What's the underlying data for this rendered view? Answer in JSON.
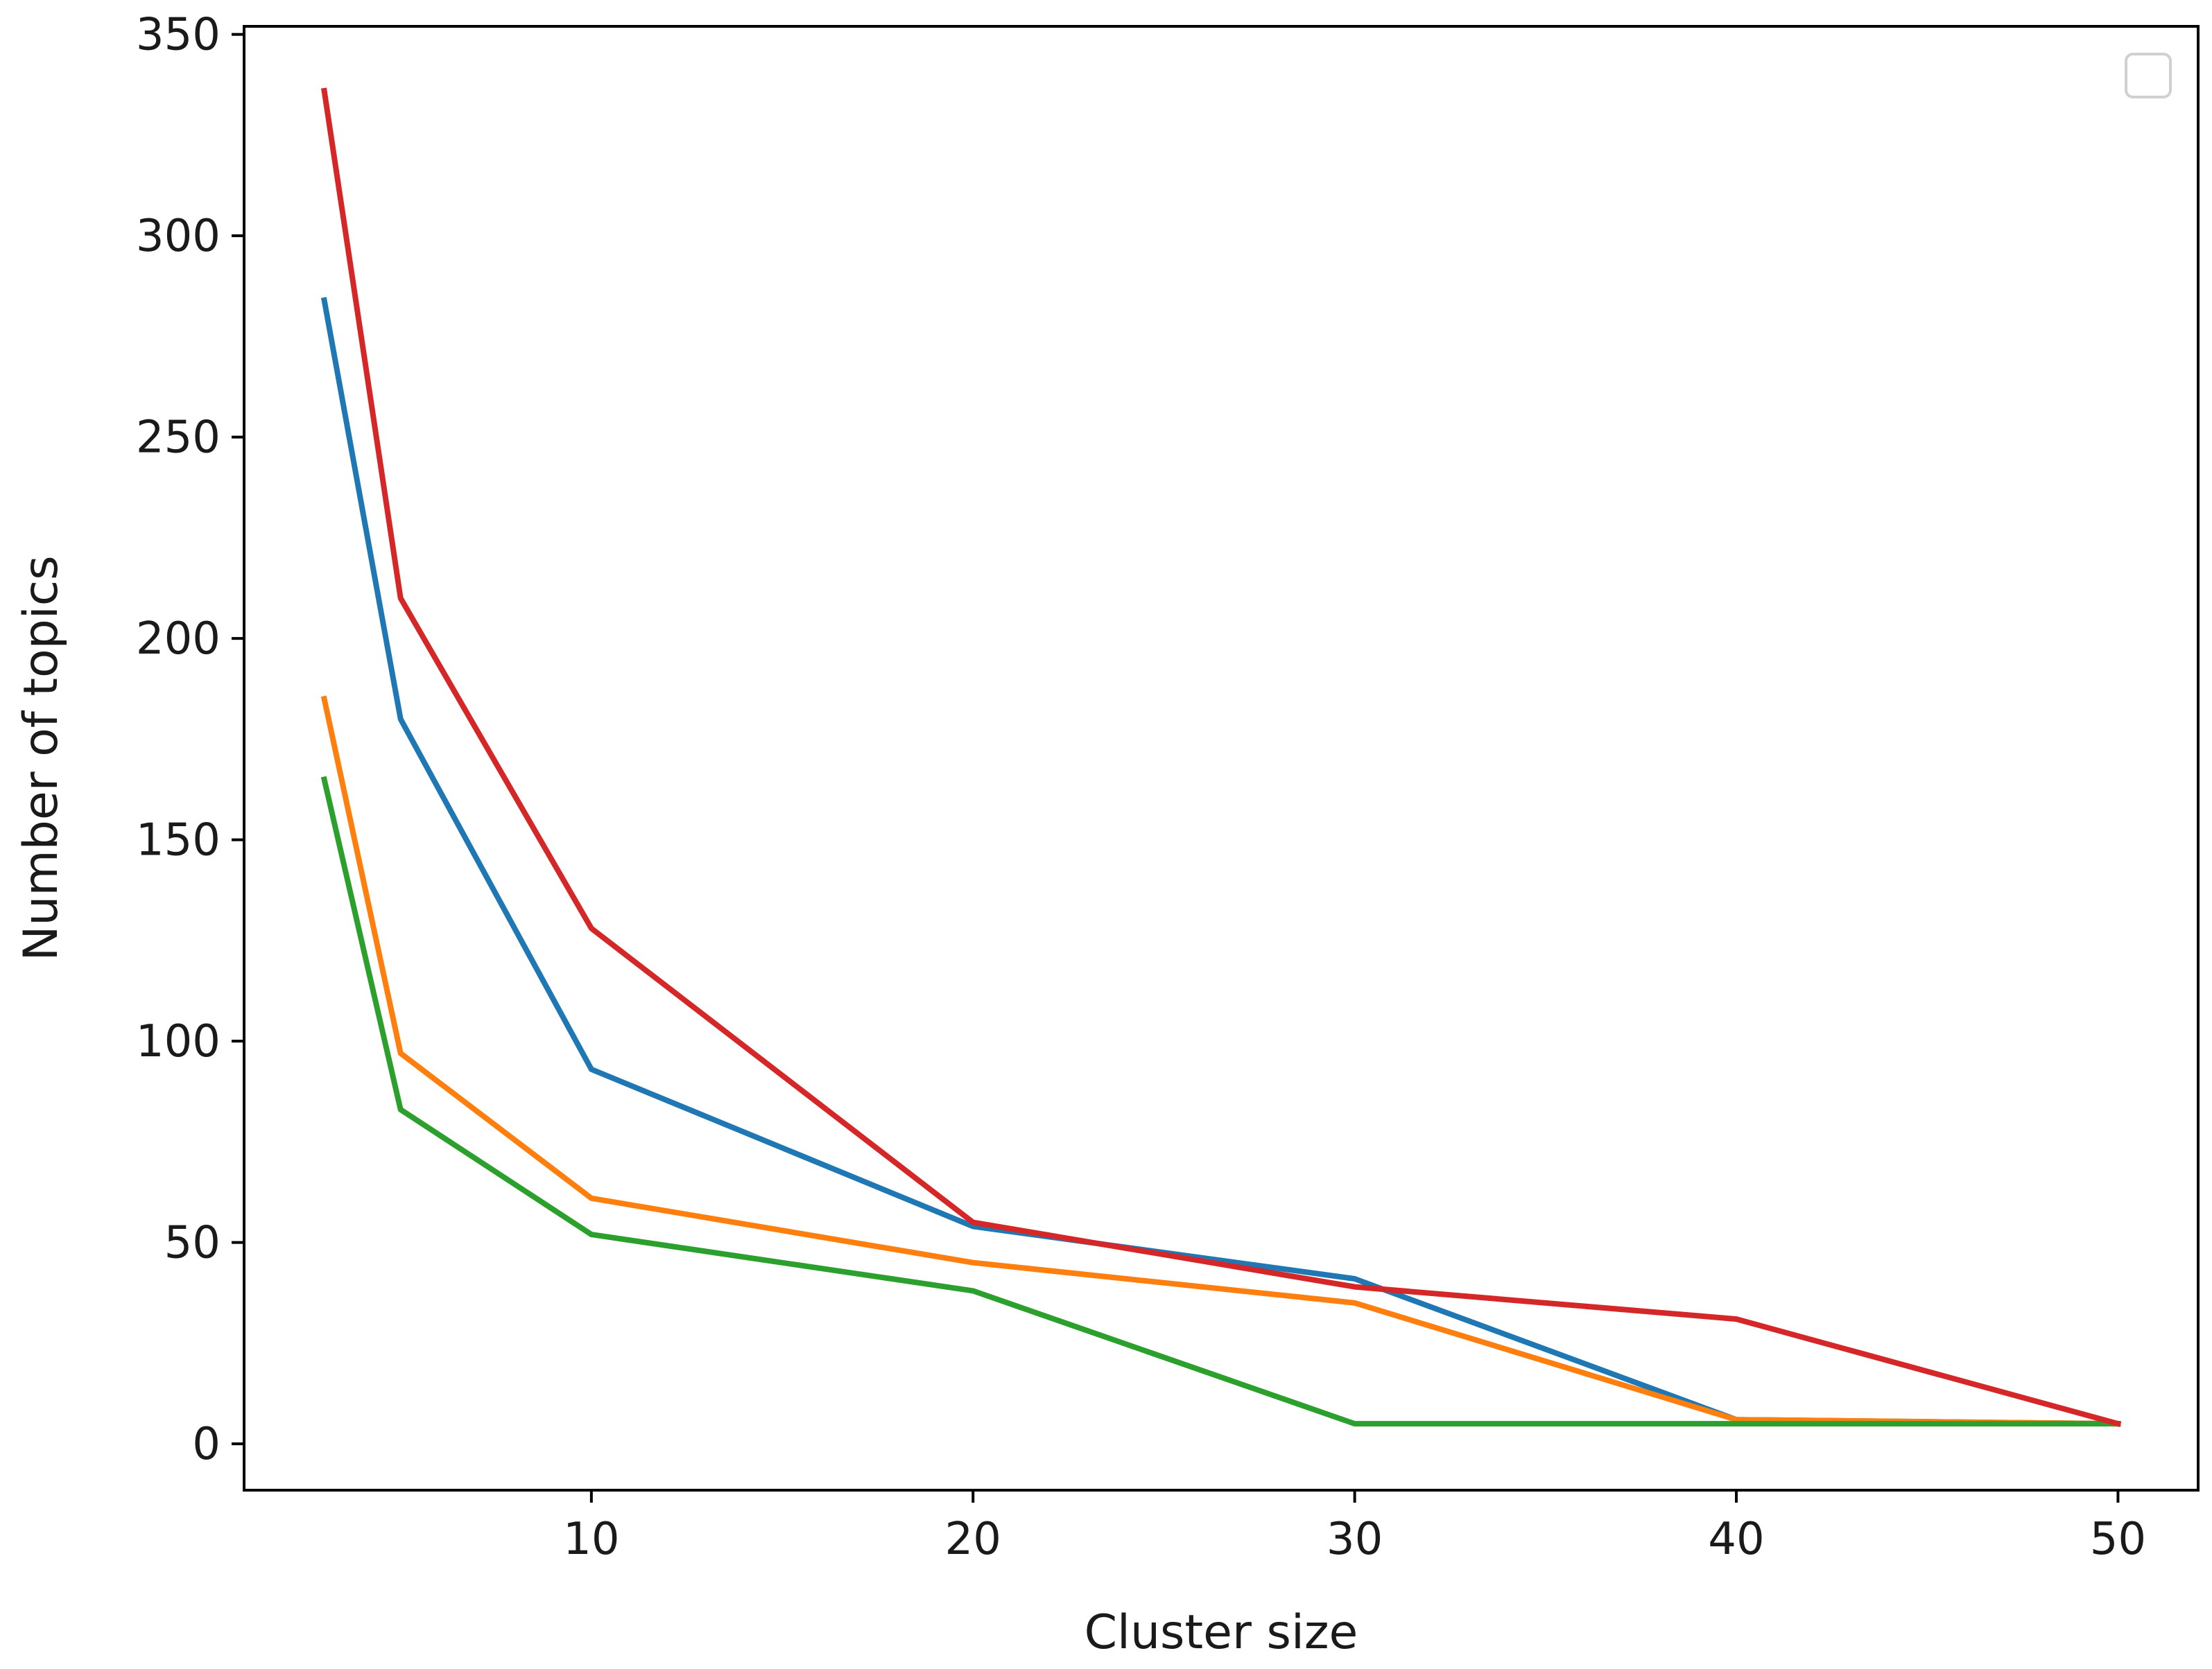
{
  "chart_data": {
    "type": "line",
    "title": "",
    "xlabel": "Cluster size",
    "ylabel": "Number of topics",
    "xlim": [
      0.9,
      52.1
    ],
    "ylim": [
      -11.5,
      352
    ],
    "xticks": [
      10,
      20,
      30,
      40,
      50
    ],
    "yticks": [
      0,
      50,
      100,
      150,
      200,
      250,
      300,
      350
    ],
    "grid": false,
    "legend": {
      "placement": "top-right",
      "entries": []
    },
    "x": [
      3,
      5,
      10,
      20,
      30,
      40,
      50
    ],
    "series": [
      {
        "color": "#1f77b4",
        "values": [
          284,
          180,
          93,
          54,
          41,
          6,
          5
        ]
      },
      {
        "color": "#ff7f0e",
        "values": [
          185,
          97,
          61,
          45,
          35,
          6,
          5
        ]
      },
      {
        "color": "#2ca02c",
        "values": [
          165,
          83,
          52,
          38,
          5,
          5,
          5
        ]
      },
      {
        "color": "#d62728",
        "values": [
          336,
          210,
          128,
          55,
          39,
          31,
          5
        ]
      }
    ]
  }
}
